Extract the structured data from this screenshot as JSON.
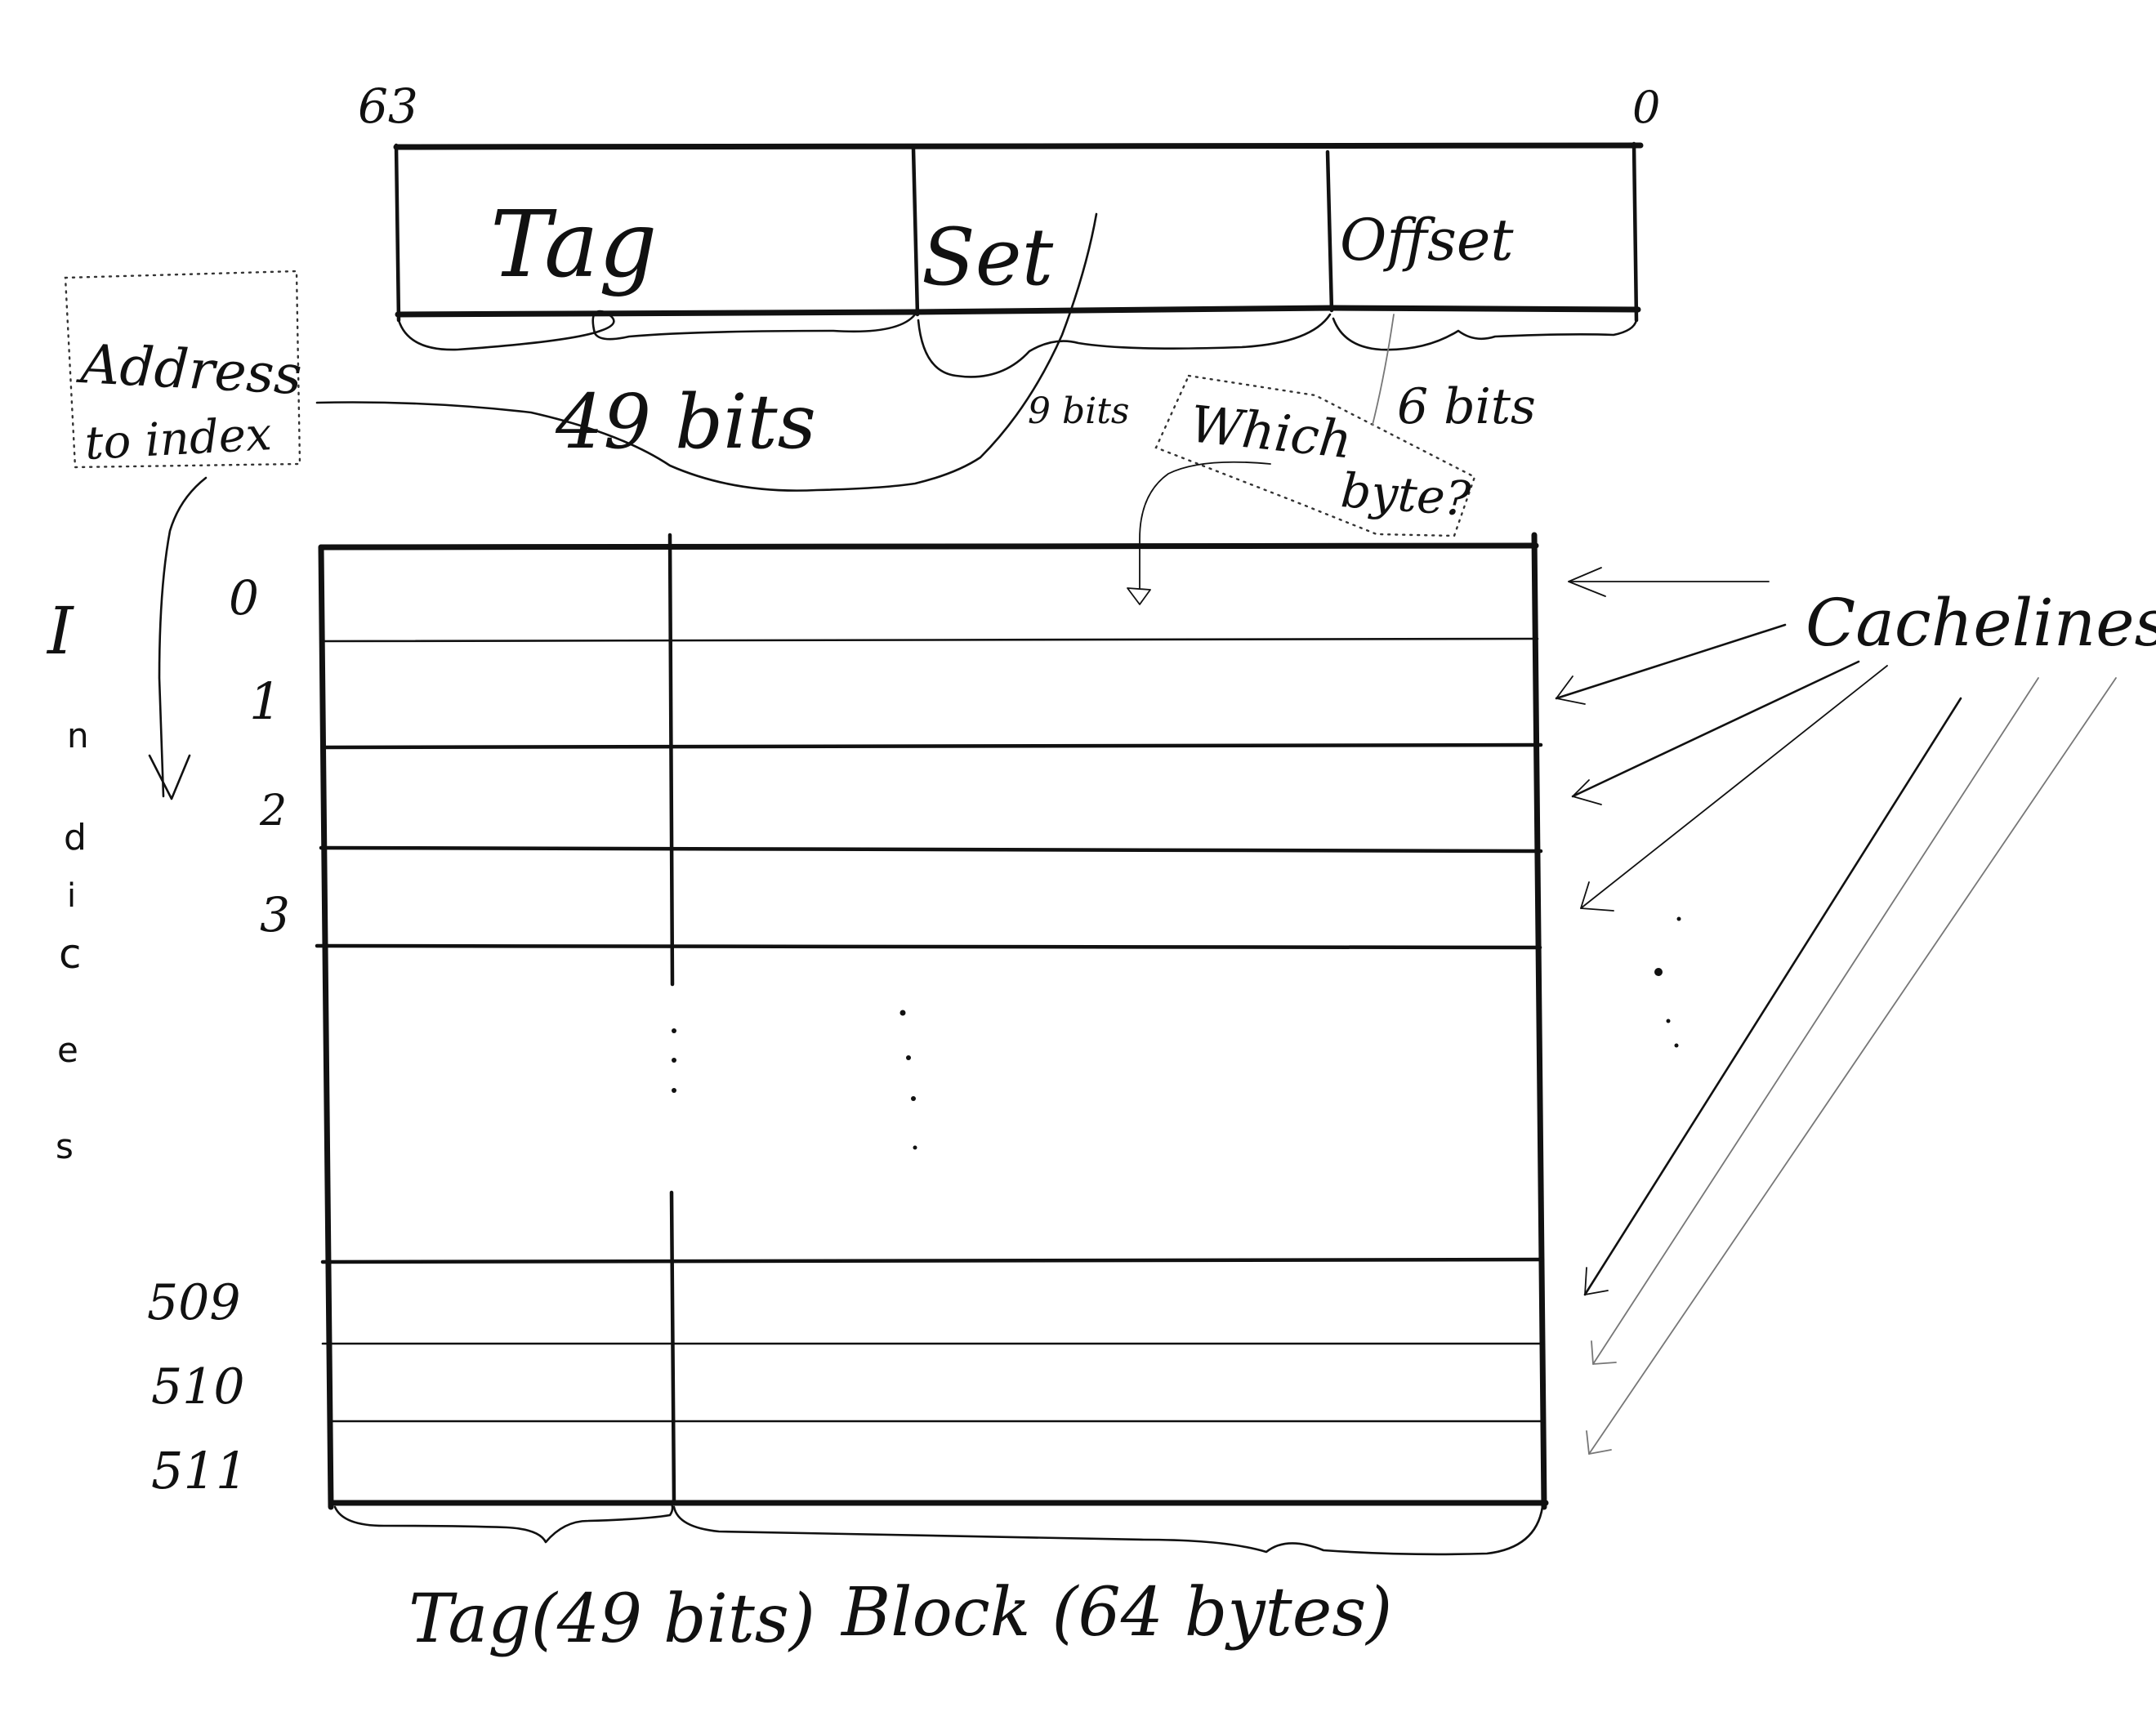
{
  "address": {
    "bit_high": "63",
    "bit_low": "0",
    "fields": [
      {
        "label": "Tag",
        "width": "49 bits"
      },
      {
        "label": "Set",
        "width": "9 bits"
      },
      {
        "label": "Offset",
        "width": "6 bits"
      }
    ]
  },
  "notes": {
    "address_to_index": [
      "Address",
      "to index"
    ],
    "which_byte": [
      "Which",
      "byte?"
    ]
  },
  "indices_label": [
    "I",
    "n",
    "d",
    "i",
    "c",
    "e",
    "s"
  ],
  "row_indices": [
    "0",
    "1",
    "2",
    "3",
    "509",
    "510",
    "511"
  ],
  "cachelines_label": "Cachelines",
  "columns": {
    "tag": "Tag(49 bits)",
    "block": "Block (64 bytes)"
  }
}
